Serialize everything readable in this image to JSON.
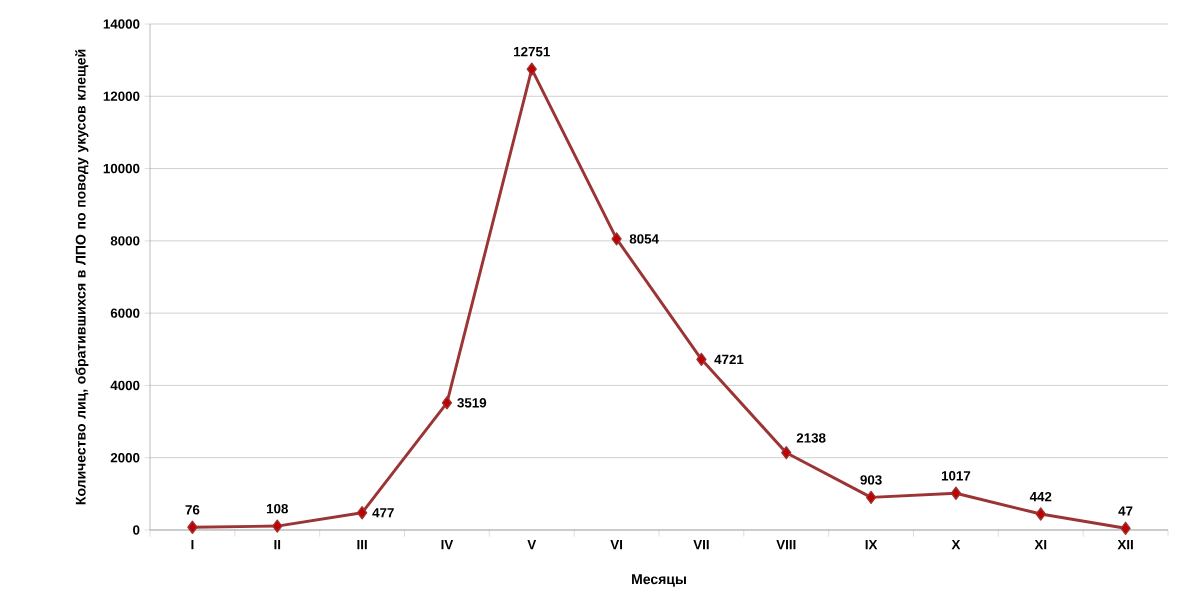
{
  "chart_data": {
    "type": "line",
    "xlabel": "Месяцы",
    "ylabel": "Количество лиц, обратившихся  в ЛПО по поводу укусов клещей",
    "categories": [
      "I",
      "II",
      "III",
      "IV",
      "V",
      "VI",
      "VII",
      "VIII",
      "IX",
      "X",
      "XI",
      "XII"
    ],
    "series": [
      {
        "color": "#9b3535",
        "values": [
          76,
          108,
          477,
          3519,
          12751,
          8054,
          4721,
          2138,
          903,
          1017,
          442,
          47
        ]
      }
    ],
    "ylim": [
      0,
      14000
    ],
    "yticks": [
      0,
      2000,
      4000,
      6000,
      8000,
      10000,
      12000,
      14000
    ],
    "grid": "y",
    "marker": "diamond",
    "line_style": "solid",
    "data_labels": true
  }
}
